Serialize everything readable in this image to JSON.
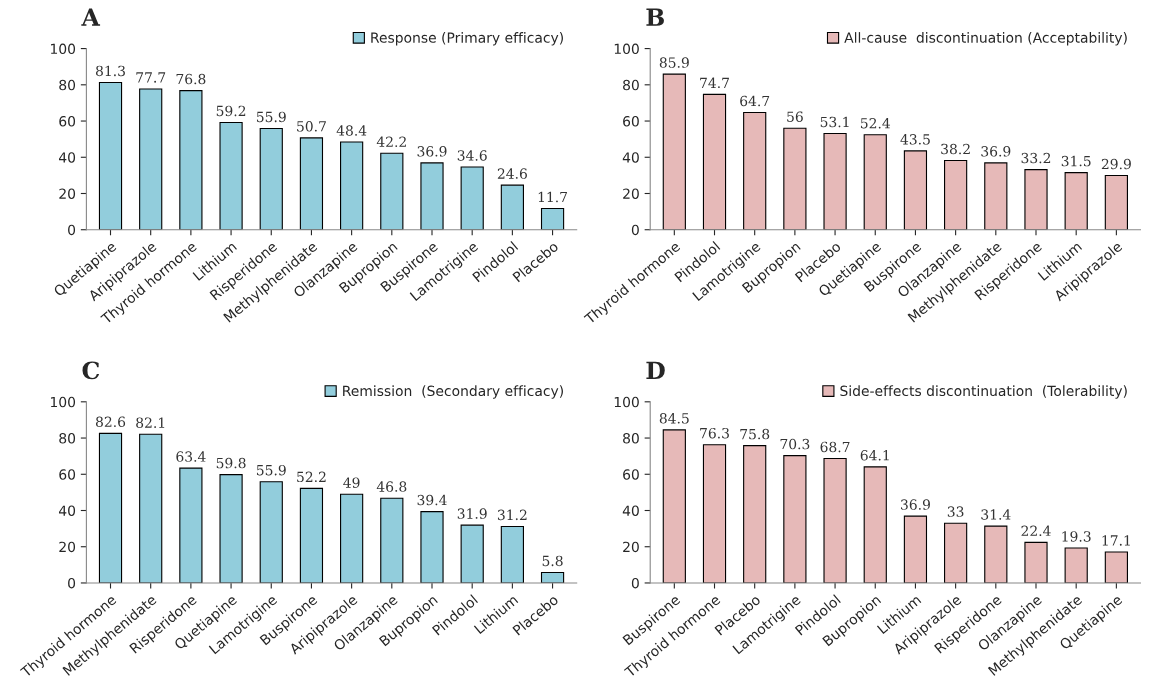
{
  "chart_data": [
    {
      "type": "bar",
      "title": "A",
      "categories": [
        "Quetiapine",
        "Aripiprazole",
        "Thyroid hormone",
        "Lithium",
        "Risperidone",
        "Methylphenidate",
        "Olanzapine",
        "Bupropion",
        "Buspirone",
        "Lamotrigine",
        "Pindolol",
        "Placebo"
      ],
      "series": [
        {
          "name": "Response (Primary efficacy)",
          "color": "#92cddc",
          "values": [
            81.3,
            77.7,
            76.8,
            59.2,
            55.9,
            50.7,
            48.4,
            42.2,
            36.9,
            34.6,
            24.6,
            11.7
          ]
        }
      ],
      "ylim": [
        0,
        100
      ],
      "yticks": [
        0,
        20,
        40,
        60,
        80,
        100
      ],
      "data_labels": true,
      "legend": "top right",
      "grid": false
    },
    {
      "type": "bar",
      "title": "B",
      "categories": [
        "Thyroid hormone",
        "Pindolol",
        "Lamotrigine",
        "Bupropion",
        "Placebo",
        "Quetiapine",
        "Buspirone",
        "Olanzapine",
        "Methylphenidate",
        "Risperidone",
        "Lithium",
        "Aripiprazole"
      ],
      "series": [
        {
          "name": "All-cause  discontinuation (Acceptability)",
          "color": "#e6b9b8",
          "values": [
            85.9,
            74.7,
            64.7,
            56,
            53.1,
            52.4,
            43.5,
            38.2,
            36.9,
            33.2,
            31.5,
            29.9
          ]
        }
      ],
      "ylim": [
        0,
        100
      ],
      "yticks": [
        0,
        20,
        40,
        60,
        80,
        100
      ],
      "data_labels": true,
      "legend": "top right",
      "grid": false
    },
    {
      "type": "bar",
      "title": "C",
      "categories": [
        "Thyroid hormone",
        "Methylphenidate",
        "Risperidone",
        "Quetiapine",
        "Lamotrigine",
        "Buspirone",
        "Aripiprazole",
        "Olanzapine",
        "Bupropion",
        "Pindolol",
        "Lithium",
        "Placebo"
      ],
      "series": [
        {
          "name": "Remission  (Secondary efficacy)",
          "color": "#92cddc",
          "values": [
            82.6,
            82.1,
            63.4,
            59.8,
            55.9,
            52.2,
            49,
            46.8,
            39.4,
            31.9,
            31.2,
            5.8
          ]
        }
      ],
      "ylim": [
        0,
        100
      ],
      "yticks": [
        0,
        20,
        40,
        60,
        80,
        100
      ],
      "data_labels": true,
      "legend": "top right",
      "grid": false
    },
    {
      "type": "bar",
      "title": "D",
      "categories": [
        "Buspirone",
        "Thyroid hormone",
        "Placebo",
        "Lamotrigine",
        "Pindolol",
        "Bupropion",
        "Lithium",
        "Aripiprazole",
        "Risperidone",
        "Olanzapine",
        "Methylphenidate",
        "Quetiapine"
      ],
      "series": [
        {
          "name": "Side-effects discontinuation  (Tolerability)",
          "color": "#e6b9b8",
          "values": [
            84.5,
            76.3,
            75.8,
            70.3,
            68.7,
            64.1,
            36.9,
            33,
            31.4,
            22.4,
            19.3,
            17.1
          ]
        }
      ],
      "ylim": [
        0,
        100
      ],
      "yticks": [
        0,
        20,
        40,
        60,
        80,
        100
      ],
      "data_labels": true,
      "legend": "top right",
      "grid": false
    }
  ]
}
